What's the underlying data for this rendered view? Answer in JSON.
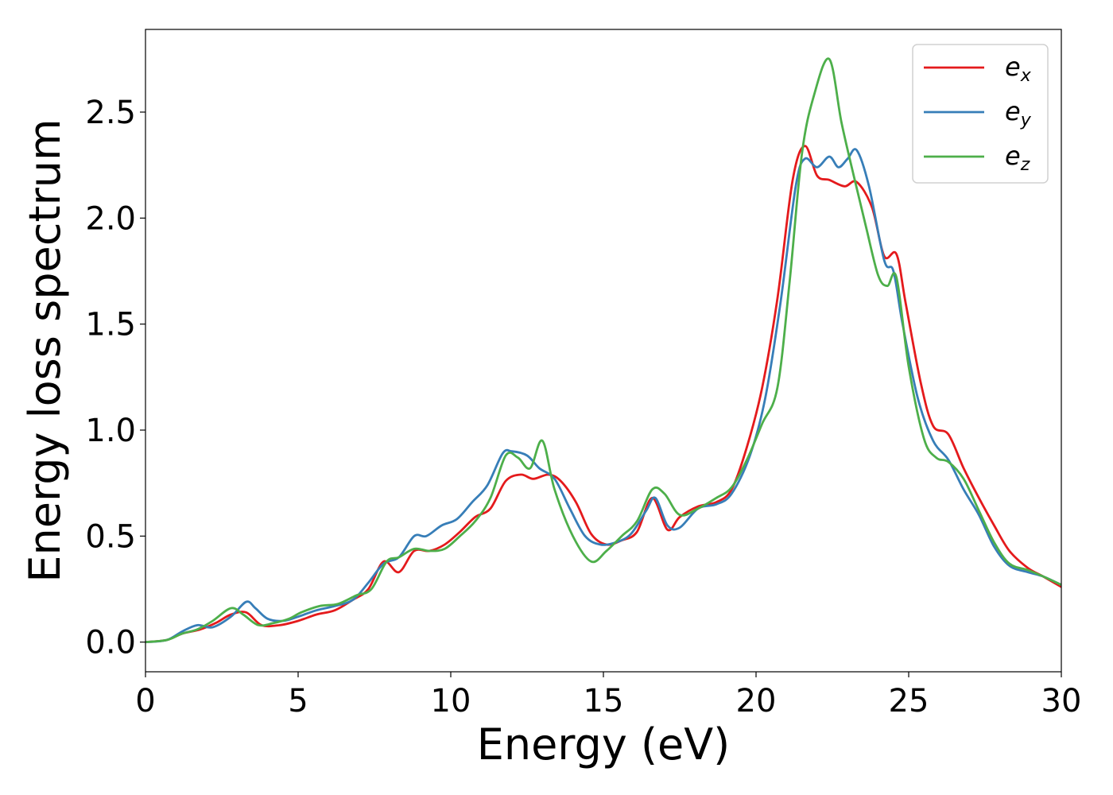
{
  "chart_data": {
    "type": "line",
    "title": "",
    "xlabel": "Energy (eV)",
    "ylabel": "Energy loss spectrum",
    "xlim": [
      0,
      30
    ],
    "ylim": [
      -0.14,
      2.89
    ],
    "xticks": [
      0,
      5,
      10,
      15,
      20,
      25,
      30
    ],
    "xtick_labels": [
      "0",
      "5",
      "10",
      "15",
      "20",
      "25",
      "30"
    ],
    "yticks": [
      0.0,
      0.5,
      1.0,
      1.5,
      2.0,
      2.5
    ],
    "ytick_labels": [
      "0.0",
      "0.5",
      "1.0",
      "1.5",
      "2.0",
      "2.5"
    ],
    "grid": false,
    "legend_position": "top-right",
    "series": [
      {
        "name": "e_x",
        "label_base": "e",
        "label_sub": "x",
        "color": "#e41a1c",
        "x": [
          0,
          0.7,
          1.2,
          1.8,
          2.3,
          2.8,
          3.3,
          3.8,
          4.4,
          5.0,
          5.6,
          6.2,
          6.8,
          7.3,
          7.8,
          8.3,
          8.8,
          9.3,
          9.8,
          10.3,
          10.8,
          11.3,
          11.8,
          12.3,
          12.7,
          13.2,
          13.6,
          14.1,
          14.6,
          15.1,
          15.6,
          16.1,
          16.6,
          17.1,
          17.5,
          18.1,
          18.7,
          19.2,
          19.7,
          20.2,
          20.7,
          21.2,
          21.6,
          22.0,
          22.4,
          22.9,
          23.3,
          23.8,
          24.2,
          24.6,
          24.9,
          25.4,
          25.8,
          26.3,
          26.8,
          27.3,
          27.8,
          28.3,
          28.9,
          29.4,
          30.0
        ],
        "y": [
          0.0,
          0.01,
          0.04,
          0.06,
          0.09,
          0.13,
          0.14,
          0.08,
          0.08,
          0.1,
          0.13,
          0.15,
          0.2,
          0.25,
          0.38,
          0.33,
          0.43,
          0.43,
          0.46,
          0.52,
          0.59,
          0.63,
          0.76,
          0.79,
          0.77,
          0.79,
          0.76,
          0.66,
          0.51,
          0.46,
          0.48,
          0.52,
          0.68,
          0.53,
          0.59,
          0.64,
          0.66,
          0.72,
          0.92,
          1.2,
          1.62,
          2.18,
          2.34,
          2.2,
          2.18,
          2.15,
          2.17,
          2.05,
          1.82,
          1.83,
          1.6,
          1.22,
          1.02,
          0.98,
          0.82,
          0.68,
          0.55,
          0.43,
          0.35,
          0.31,
          0.26
        ]
      },
      {
        "name": "e_y",
        "label_base": "e",
        "label_sub": "y",
        "color": "#377eb8",
        "x": [
          0,
          0.7,
          1.2,
          1.7,
          2.2,
          2.8,
          3.3,
          3.6,
          4.0,
          4.5,
          5.0,
          5.6,
          6.2,
          6.8,
          7.3,
          7.8,
          8.3,
          8.8,
          9.2,
          9.7,
          10.2,
          10.7,
          11.2,
          11.7,
          12.0,
          12.5,
          12.9,
          13.4,
          13.9,
          14.4,
          14.9,
          15.4,
          15.9,
          16.4,
          16.7,
          17.1,
          17.5,
          18.1,
          18.7,
          19.2,
          19.8,
          20.3,
          20.8,
          21.3,
          21.6,
          22.0,
          22.4,
          22.7,
          23.0,
          23.3,
          23.7,
          24.2,
          24.5,
          24.8,
          25.3,
          25.8,
          26.3,
          26.8,
          27.3,
          27.8,
          28.3,
          28.9,
          29.4,
          30.0
        ],
        "y": [
          0.0,
          0.01,
          0.05,
          0.08,
          0.07,
          0.12,
          0.19,
          0.16,
          0.11,
          0.1,
          0.12,
          0.15,
          0.17,
          0.2,
          0.28,
          0.37,
          0.4,
          0.5,
          0.5,
          0.55,
          0.58,
          0.66,
          0.74,
          0.89,
          0.9,
          0.88,
          0.82,
          0.77,
          0.63,
          0.5,
          0.46,
          0.47,
          0.51,
          0.62,
          0.68,
          0.55,
          0.54,
          0.63,
          0.65,
          0.7,
          0.88,
          1.15,
          1.6,
          2.15,
          2.28,
          2.24,
          2.29,
          2.24,
          2.28,
          2.32,
          2.15,
          1.8,
          1.75,
          1.5,
          1.15,
          0.95,
          0.86,
          0.72,
          0.6,
          0.45,
          0.36,
          0.33,
          0.31,
          0.27
        ]
      },
      {
        "name": "e_z",
        "label_base": "e",
        "label_sub": "z",
        "color": "#4daf4a",
        "x": [
          0,
          0.7,
          1.2,
          1.7,
          2.2,
          2.8,
          3.2,
          3.7,
          4.2,
          4.7,
          5.1,
          5.7,
          6.3,
          6.9,
          7.4,
          7.9,
          8.3,
          8.8,
          9.3,
          9.8,
          10.3,
          10.8,
          11.3,
          11.8,
          12.2,
          12.6,
          13.0,
          13.4,
          14.0,
          14.6,
          15.1,
          15.6,
          16.1,
          16.6,
          17.0,
          17.5,
          18.1,
          18.7,
          19.2,
          19.7,
          20.2,
          20.7,
          21.1,
          21.5,
          21.9,
          22.4,
          22.8,
          23.2,
          23.6,
          24.0,
          24.3,
          24.6,
          25.0,
          25.5,
          25.9,
          26.3,
          26.8,
          27.3,
          27.8,
          28.3,
          28.9,
          29.4,
          30.0
        ],
        "y": [
          0.0,
          0.01,
          0.04,
          0.06,
          0.1,
          0.16,
          0.13,
          0.08,
          0.09,
          0.11,
          0.14,
          0.17,
          0.18,
          0.22,
          0.25,
          0.38,
          0.4,
          0.44,
          0.43,
          0.44,
          0.5,
          0.57,
          0.68,
          0.88,
          0.87,
          0.82,
          0.95,
          0.72,
          0.5,
          0.38,
          0.43,
          0.5,
          0.57,
          0.72,
          0.7,
          0.6,
          0.63,
          0.68,
          0.73,
          0.86,
          1.03,
          1.2,
          1.7,
          2.3,
          2.58,
          2.75,
          2.45,
          2.2,
          1.96,
          1.73,
          1.68,
          1.72,
          1.3,
          0.96,
          0.87,
          0.85,
          0.77,
          0.62,
          0.47,
          0.37,
          0.34,
          0.31,
          0.27
        ]
      }
    ]
  }
}
